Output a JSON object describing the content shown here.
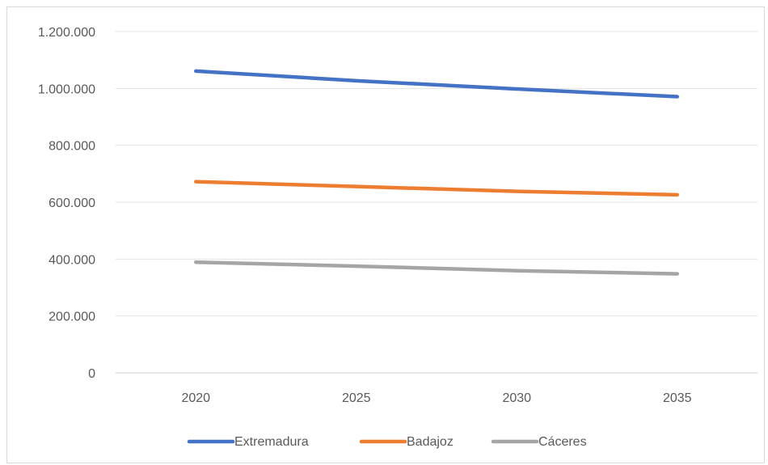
{
  "chart_data": {
    "type": "line",
    "categories": [
      "2020",
      "2025",
      "2030",
      "2035"
    ],
    "series": [
      {
        "name": "Extremadura",
        "values": [
          1061000,
          1027000,
          998000,
          971000
        ],
        "color": "#4472C4"
      },
      {
        "name": "Badajoz",
        "values": [
          672000,
          655000,
          638000,
          626000
        ],
        "color": "#ED7D31"
      },
      {
        "name": "Cáceres",
        "values": [
          389000,
          375000,
          359000,
          348000
        ],
        "color": "#A5A5A5"
      }
    ],
    "y_ticks": [
      "0",
      "200.000",
      "400.000",
      "600.000",
      "800.000",
      "1.000.000",
      "1.200.000"
    ],
    "ylim": [
      0,
      1200000
    ],
    "grid": true,
    "legend_position": "bottom"
  }
}
